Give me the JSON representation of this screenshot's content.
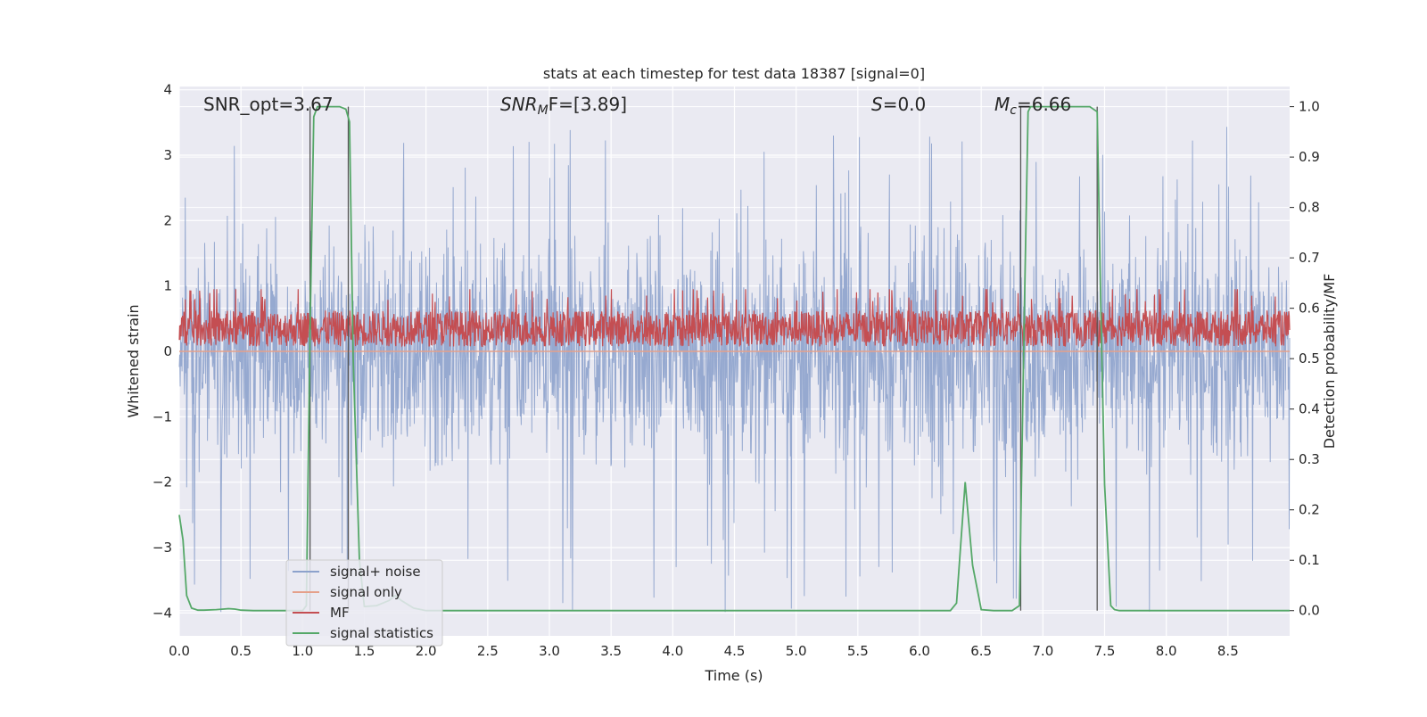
{
  "chart_data": {
    "type": "line",
    "title": "stats at each timestep for test data 18387 [signal=0]",
    "xlabel": "Time (s)",
    "ylabel_left": "Whitened strain",
    "ylabel_right": "Detection probability/MF",
    "xlim": [
      0.0,
      9.0
    ],
    "ylim_left": [
      -4.35,
      4.05
    ],
    "ylim_right": [
      -0.05,
      1.04
    ],
    "grid": true,
    "legend_position": "lower-left",
    "xticks": [
      "0.0",
      "0.5",
      "1.0",
      "1.5",
      "2.0",
      "2.5",
      "3.0",
      "3.5",
      "4.0",
      "4.5",
      "5.0",
      "5.5",
      "6.0",
      "6.5",
      "7.0",
      "7.5",
      "8.0",
      "8.5"
    ],
    "yticks_left": [
      "4",
      "3",
      "2",
      "1",
      "0",
      "−1",
      "−2",
      "−3",
      "−4"
    ],
    "yticks_right": [
      "1.0",
      "0.9",
      "0.8",
      "0.7",
      "0.6",
      "0.5",
      "0.4",
      "0.3",
      "0.2",
      "0.1",
      "0.0"
    ],
    "annotations": {
      "snr_opt": "SNR_opt=3.67",
      "snr_mf_base": "SNR",
      "snr_mf_sub": "M",
      "snr_mf_rest": "F=[3.89]",
      "s_var": "S",
      "s_rest": "=0.0",
      "mc_base": "M",
      "mc_sub": "c",
      "mc_rest": "=6.66"
    },
    "series": [
      {
        "name": "signal+ noise",
        "color": "#8da2cc",
        "noise_band": [
          -1.7,
          1.85
        ],
        "spike_range": [
          -4.0,
          3.45
        ]
      },
      {
        "name": "signal only",
        "color": "#e5a08a",
        "values": 0.0
      },
      {
        "name": "MF",
        "color": "#c44e52",
        "noise_band": [
          0.05,
          0.95
        ]
      },
      {
        "name": "signal statistics",
        "color": "#55a868",
        "x": [
          0.0,
          0.03,
          0.06,
          0.1,
          0.15,
          0.2,
          0.3,
          0.4,
          0.45,
          0.5,
          0.6,
          0.8,
          1.0,
          1.03,
          1.06,
          1.09,
          1.12,
          1.3,
          1.35,
          1.38,
          1.41,
          1.46,
          1.5,
          1.6,
          1.7,
          1.75,
          1.8,
          1.9,
          2.0,
          3.0,
          4.0,
          5.0,
          6.0,
          6.25,
          6.3,
          6.37,
          6.43,
          6.5,
          6.6,
          6.75,
          6.81,
          6.85,
          6.88,
          6.9,
          6.95,
          7.0,
          7.2,
          7.38,
          7.44,
          7.47,
          7.5,
          7.55,
          7.58,
          7.62,
          7.8,
          8.0,
          9.0
        ],
        "y": [
          0.19,
          0.14,
          0.03,
          0.005,
          0.001,
          0.001,
          0.002,
          0.004,
          0.003,
          0.001,
          0.0,
          0.0,
          0.0,
          0.01,
          0.55,
          0.98,
          1.0,
          1.0,
          0.995,
          0.97,
          0.5,
          0.1,
          0.008,
          0.01,
          0.02,
          0.03,
          0.02,
          0.005,
          0.0,
          0.0,
          0.0,
          0.0,
          0.0,
          0.0,
          0.015,
          0.255,
          0.09,
          0.002,
          0.0,
          0.0,
          0.01,
          0.6,
          0.99,
          1.0,
          1.0,
          1.0,
          1.0,
          1.0,
          0.99,
          0.6,
          0.25,
          0.01,
          0.002,
          0.0,
          0.0,
          0.0,
          0.0
        ]
      }
    ],
    "vertical_lines_x": [
      1.06,
      1.37,
      6.82,
      7.44
    ]
  }
}
